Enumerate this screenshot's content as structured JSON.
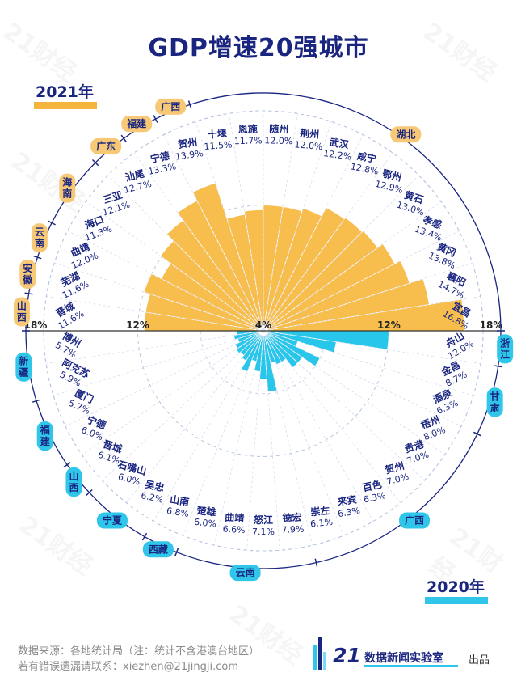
{
  "title": "GDP增速20强城市",
  "legend": {
    "top_year": "2021年",
    "bottom_year": "2020年"
  },
  "colors": {
    "bar2021": "#f7be4e",
    "bar2020": "#29c6ec",
    "navy": "#1a2580",
    "province2021": "#f7c977",
    "province2020": "#2fc6ea"
  },
  "axis_labels": {
    "left_outer": "18%",
    "left_mid": "12%",
    "center": "4%",
    "right_mid": "12%",
    "right_outer": "18%"
  },
  "chart_data": {
    "type": "bar",
    "layout": "polar-radial",
    "title": "GDP增速20强城市",
    "radial_axis": {
      "min": 4,
      "max": 18,
      "ticks": [
        4,
        12,
        18
      ],
      "unit": "%"
    },
    "series": [
      {
        "name": "2021年",
        "categories": [
          "晋城",
          "芜湖",
          "曲靖",
          "海口",
          "三亚",
          "汕尾",
          "宁德",
          "贺州",
          "十堰",
          "恩施",
          "随州",
          "荆州",
          "武汉",
          "咸宁",
          "鄂州",
          "黄石",
          "孝感",
          "黄冈",
          "襄阳",
          "宜昌"
        ],
        "labels": [
          "11.6%",
          "11.6%",
          "12.0%",
          "11.3%",
          "12.1%",
          "12.7%",
          "13.3%",
          "13.9%",
          "11.5%",
          "11.7%",
          "12.0%",
          "12.0%",
          "12.2%",
          "12.8%",
          "12.9%",
          "13.0%",
          "13.4%",
          "13.8%",
          "14.7%",
          "16.8%"
        ],
        "values": [
          11.6,
          11.6,
          12.0,
          11.3,
          12.1,
          12.7,
          13.3,
          13.9,
          11.5,
          11.7,
          12.0,
          12.0,
          12.2,
          12.8,
          12.9,
          13.0,
          13.4,
          13.8,
          14.7,
          16.8
        ]
      },
      {
        "name": "2020年",
        "categories": [
          "舟山",
          "金昌",
          "酒泉",
          "梧州",
          "贵港",
          "贺州",
          "百色",
          "来宾",
          "崇左",
          "德宏",
          "怒江",
          "曲靖",
          "楚雄",
          "山南",
          "吴忠",
          "石嘴山",
          "晋城",
          "宁德",
          "厦门",
          "阿克苏",
          "博州"
        ],
        "labels": [
          "12.0%",
          "8.7%",
          "6.3%",
          "8.0%",
          "7.0%",
          "7.0%",
          "6.3%",
          "6.3%",
          "6.1%",
          "7.9%",
          "7.1%",
          "6.6%",
          "6.0%",
          "6.8%",
          "6.2%",
          "6.0%",
          "6.1%",
          "6.0%",
          "5.7%",
          "5.9%",
          "5.7%"
        ],
        "values": [
          12.0,
          8.7,
          6.3,
          8.0,
          7.0,
          7.0,
          6.3,
          6.3,
          6.1,
          7.9,
          7.1,
          6.6,
          6.0,
          6.8,
          6.2,
          6.0,
          6.1,
          6.0,
          5.7,
          5.9,
          5.7
        ]
      }
    ],
    "provinces_2021": [
      {
        "name": "山西",
        "cities": [
          "晋城"
        ]
      },
      {
        "name": "安徽",
        "cities": [
          "芜湖"
        ]
      },
      {
        "name": "云南",
        "cities": [
          "曲靖"
        ]
      },
      {
        "name": "海南",
        "cities": [
          "海口",
          "三亚"
        ]
      },
      {
        "name": "广东",
        "cities": [
          "汕尾"
        ]
      },
      {
        "name": "福建",
        "cities": [
          "宁德"
        ]
      },
      {
        "name": "广西",
        "cities": [
          "贺州"
        ]
      },
      {
        "name": "湖北",
        "cities": [
          "十堰",
          "恩施",
          "随州",
          "荆州",
          "武汉",
          "咸宁",
          "鄂州",
          "黄石",
          "孝感",
          "黄冈",
          "襄阳",
          "宜昌"
        ]
      }
    ],
    "provinces_2020": [
      {
        "name": "浙江",
        "cities": [
          "舟山"
        ]
      },
      {
        "name": "甘肃",
        "cities": [
          "金昌",
          "酒泉"
        ]
      },
      {
        "name": "广西",
        "cities": [
          "梧州",
          "贵港",
          "贺州",
          "百色",
          "来宾",
          "崇左"
        ]
      },
      {
        "name": "云南",
        "cities": [
          "德宏",
          "怒江",
          "曲靖",
          "楚雄"
        ]
      },
      {
        "name": "西藏",
        "cities": [
          "山南"
        ]
      },
      {
        "name": "宁夏",
        "cities": [
          "吴忠",
          "石嘴山"
        ]
      },
      {
        "name": "山西",
        "cities": [
          "晋城"
        ]
      },
      {
        "name": "福建",
        "cities": [
          "宁德",
          "厦门"
        ]
      },
      {
        "name": "新疆",
        "cities": [
          "阿克苏",
          "博州"
        ]
      }
    ]
  },
  "footer": {
    "source": "数据来源：各地统计局（注：统计不含港澳台地区）",
    "contact": "若有错误遗漏请联系：xiezhen@21jingji.com",
    "logo_number": "21",
    "logo_name": "数据新闻实验室",
    "publisher": "出品"
  },
  "watermark": "21财经"
}
